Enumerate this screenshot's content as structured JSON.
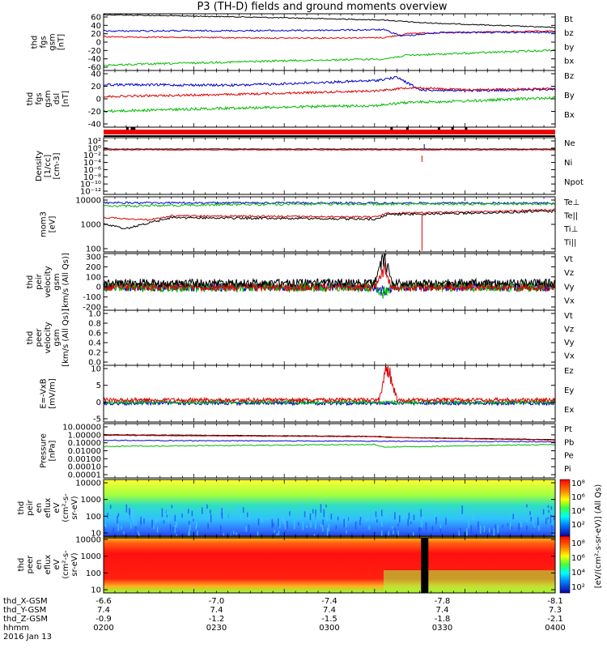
{
  "title": "P3 (TH-D) fields and ground moments overview",
  "panels": [
    {
      "ylabel": [
        "thd",
        "fgs",
        "gsm",
        "[nT]"
      ],
      "yticks": [
        "60",
        "40",
        "20",
        "0",
        "-20",
        "-40",
        "-60"
      ],
      "legend": [
        "Bt",
        "bz",
        "by",
        "bx"
      ],
      "legend_colors": [
        "#000000",
        "#dd0000",
        "#00bb00",
        "#0000cc"
      ]
    },
    {
      "ylabel": [
        "thd",
        "fgs",
        "gsm",
        "dsl",
        "[nT]"
      ],
      "yticks": [
        "40",
        "20",
        "0",
        "-20",
        "-40"
      ],
      "legend": [
        "Bz",
        "By",
        "Bx"
      ],
      "legend_colors": [
        "#dd0000",
        "#00bb00",
        "#0000cc"
      ]
    },
    {
      "ylabel": [
        "Density",
        "[1/cc]",
        "[cm-3]"
      ],
      "yticks": [
        "10²",
        "10⁰",
        "10⁻²",
        "10⁻⁴",
        "10⁻⁶",
        "10⁻⁸",
        "10⁻¹⁰",
        "10⁻¹²"
      ],
      "legend": [
        "Ne",
        "Ni",
        "Npot"
      ],
      "legend_colors": [
        "#dd0000",
        "#000000",
        "#0000cc"
      ]
    },
    {
      "ylabel": [
        "mom3",
        "[eV]"
      ],
      "yticks": [
        "10000",
        "1000",
        "100"
      ],
      "legend": [
        "Te⊥",
        "Te||",
        "Ti⊥",
        "Ti||"
      ],
      "legend_colors": [
        "#dd0000",
        "#000000",
        "#0000cc",
        "#00bb00"
      ]
    },
    {
      "ylabel": [
        "thd",
        "peir",
        "velocity",
        "gsm",
        "[km/s (All Qs)]"
      ],
      "yticks": [
        "300",
        "200",
        "100",
        "0",
        "-100",
        "-200"
      ],
      "legend": [
        "Vt",
        "Vz",
        "Vy",
        "Vx"
      ],
      "legend_colors": [
        "#000000",
        "#dd0000",
        "#00bb00",
        "#0000cc"
      ]
    },
    {
      "ylabel": [
        "thd",
        "peer",
        "velocity",
        "gsm",
        "[km/s (All Qs)]"
      ],
      "yticks": [
        "1.0",
        "0.8",
        "0.6",
        "0.4",
        "0.2",
        "0.0"
      ],
      "legend": [
        "Vt",
        "Vz",
        "Vy",
        "Vx"
      ],
      "legend_colors": [
        "#000000",
        "#dd0000",
        "#00bb00",
        "#0000cc"
      ]
    },
    {
      "ylabel": [
        "E=-VxB",
        "[mV/m]"
      ],
      "yticks": [
        "10",
        "5",
        "0",
        "-5"
      ],
      "legend": [
        "Ez",
        "Ey",
        "Ex"
      ],
      "legend_colors": [
        "#dd0000",
        "#00bb00",
        "#0000cc"
      ]
    },
    {
      "ylabel": [
        "Pressure",
        "[nPa]"
      ],
      "yticks": [
        "10.00000",
        "1.00000",
        "0.10000",
        "0.01000",
        "0.00100",
        "0.00010",
        "0.00001"
      ],
      "legend": [
        "Pt",
        "Pb",
        "Pe",
        "Pi"
      ],
      "legend_colors": [
        "#000000",
        "#dd0000",
        "#00bb00",
        "#0000cc"
      ]
    },
    {
      "ylabel": [
        "thd",
        "peir",
        "en",
        "eflux",
        "eV",
        "(cm²-s-",
        "sr-eV)"
      ],
      "yticks": [
        "10000",
        "1000",
        "100",
        "10"
      ]
    },
    {
      "ylabel": [
        "thd",
        "peer",
        "en",
        "eflux",
        "eV",
        "(cm²-s-",
        "sr-eV)"
      ],
      "yticks": [
        "10000",
        "1000",
        "100",
        "10"
      ]
    }
  ],
  "colorbar": {
    "unit": "[eV/(cm²-s-sr-eV)] (All Qs)",
    "ticks_top": [
      "10⁸",
      "10⁶",
      "10⁴",
      "10²"
    ],
    "ticks_bottom": [
      "10⁸",
      "10⁶",
      "10⁴",
      "10²"
    ]
  },
  "bottom_axis": {
    "row_labels": [
      "thd_X-GSM",
      "thd_Y-GSM",
      "thd_Z-GSM",
      "hhmm",
      "2016 Jan 13"
    ],
    "columns": [
      {
        "x": "-6.6",
        "y": "7.4",
        "z": "-0.9",
        "time": "0200"
      },
      {
        "x": "-7.0",
        "y": "7.4",
        "z": "-1.2",
        "time": "0230"
      },
      {
        "x": "-7.4",
        "y": "7.4",
        "z": "-1.5",
        "time": "0300"
      },
      {
        "x": "-7.8",
        "y": "7.4",
        "z": "-1.8",
        "time": "0330"
      },
      {
        "x": "-8.1",
        "y": "7.3",
        "z": "-2.1",
        "time": "0400"
      }
    ]
  },
  "chart_data": {
    "type": "line",
    "title": "P3 (TH-D) fields and ground moments overview",
    "x": [
      "0200",
      "0230",
      "0300",
      "0330",
      "0400"
    ],
    "series_fgs": [
      {
        "name": "Bt",
        "values": [
          58,
          55,
          52,
          42,
          32
        ]
      },
      {
        "name": "bz",
        "values": [
          10,
          10,
          14,
          18,
          25
        ]
      },
      {
        "name": "by",
        "values": [
          -48,
          -42,
          -36,
          -28,
          -18
        ]
      },
      {
        "name": "bx",
        "values": [
          28,
          26,
          28,
          22,
          22
        ]
      }
    ],
    "series_fgs_dsl": [
      {
        "name": "Bz",
        "values": [
          -5,
          -2,
          2,
          6,
          8
        ]
      },
      {
        "name": "By",
        "values": [
          -30,
          -26,
          -22,
          -14,
          -8
        ]
      },
      {
        "name": "Bx",
        "values": [
          12,
          16,
          24,
          8,
          6
        ]
      }
    ],
    "series_temperature": [
      {
        "name": "Te⊥",
        "values": [
          1500,
          2000,
          2000,
          2500,
          3000
        ]
      },
      {
        "name": "Te||",
        "values": [
          800,
          1700,
          1500,
          2200,
          2600
        ]
      },
      {
        "name": "Ti⊥",
        "values": [
          6000,
          6200,
          6200,
          6400,
          6500
        ]
      },
      {
        "name": "Ti||",
        "values": [
          5000,
          5500,
          5600,
          5900,
          6000
        ]
      }
    ],
    "series_pressure": [
      {
        "name": "Pt",
        "values": [
          0.55,
          0.45,
          0.35,
          0.28,
          0.18
        ]
      },
      {
        "name": "Pb",
        "values": [
          0.5,
          0.4,
          0.32,
          0.24,
          0.16
        ]
      },
      {
        "name": "Pe",
        "values": [
          0.03,
          0.04,
          0.05,
          0.03,
          0.05
        ]
      },
      {
        "name": "Pi",
        "values": [
          0.15,
          0.15,
          0.14,
          0.11,
          0.1
        ]
      }
    ]
  }
}
